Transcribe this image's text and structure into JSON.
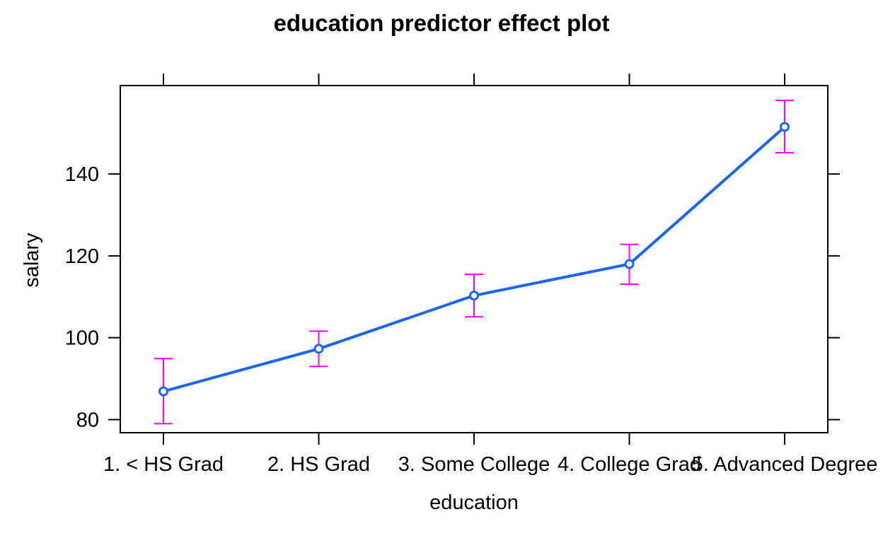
{
  "chart_data": {
    "type": "line",
    "title": "education predictor effect plot",
    "xlabel": "education",
    "ylabel": "salary",
    "categories": [
      "1. < HS Grad",
      "2. HS Grad",
      "3. Some College",
      "4. College Grad",
      "5. Advanced Degree"
    ],
    "series": [
      {
        "values": [
          86.9,
          97.3,
          110.3,
          118.0,
          151.5
        ],
        "lower": [
          79.0,
          93.0,
          105.1,
          113.1,
          145.2
        ],
        "upper": [
          94.9,
          101.6,
          115.5,
          122.8,
          158.0
        ]
      }
    ],
    "yticks": [
      80,
      100,
      120,
      140
    ],
    "ylim": [
      76.8,
      161.6
    ],
    "grid": false,
    "colors": {
      "line": "#1a66f0",
      "errorbar": "#ff00ff",
      "frame": "#000000"
    }
  }
}
